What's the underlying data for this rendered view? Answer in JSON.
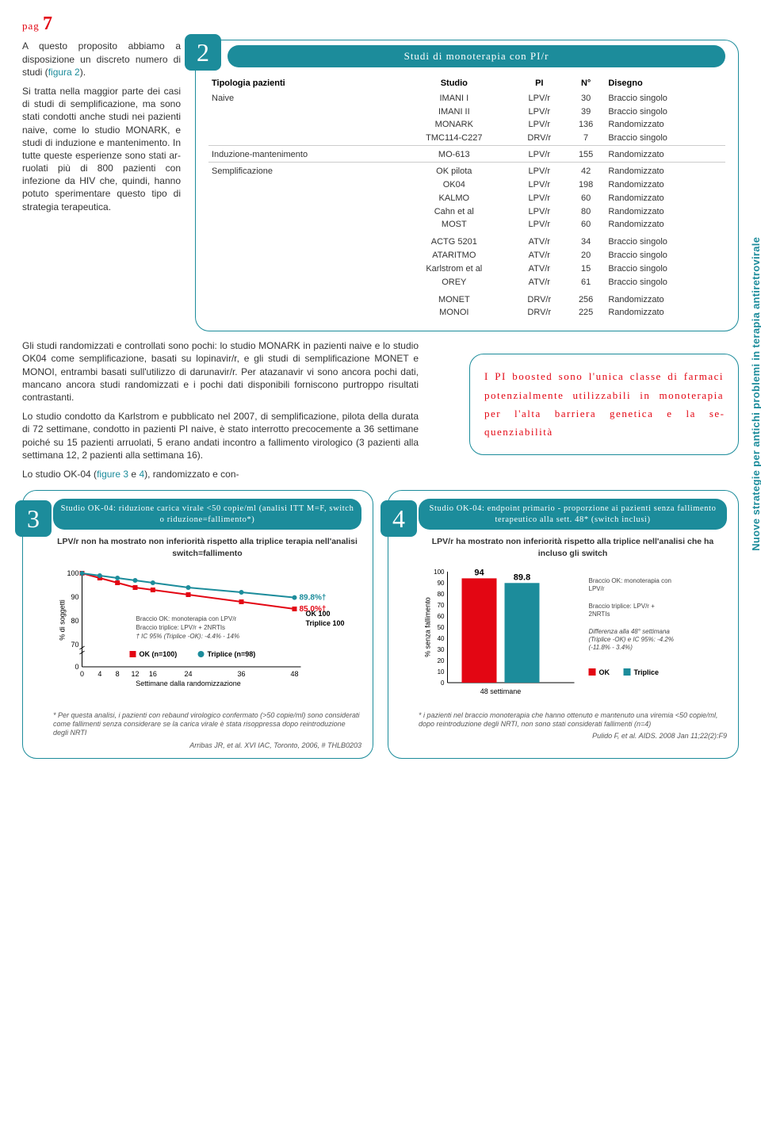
{
  "header": {
    "label": "pag",
    "num": "7"
  },
  "bodyText": {
    "p1a": "A questo proposito ab­biamo a disposizione un discreto numero di studi (",
    "p1ref": "figura 2",
    "p1b": ").",
    "p2": "Si tratta nella maggior parte dei casi di studi di semplificazione, ma sono stati condotti anche studi nei pazienti naive, come lo studio MONARK, e studi di induzione e man­tenimento. In tutte queste esperienze sono stati ar­ruolati più di 800 pazienti con infezione da HIV che, quindi, hanno potuto sperimentare questo tipo di strategia terapeutica.",
    "p3a": "Gli studi randomizzati e controllati sono pochi: lo studio MONARK in pazienti naive e lo studio OK04 come sem­plificazione, basati su lopinavir/r, e gli studi di semplifi­cazione MONET e MONOI, entrambi basati sull'utilizzo di darunavir/r. Per atazanavir vi sono ancora pochi dati, mancano ancora studi randomizzati e i pochi dati di­sponibili forniscono purtroppo risultati contrastanti.",
    "p3b": "Lo studio condotto da Karlstrom e pubblicato nel 2007, di semplificazione, pilota della durata di 72 settimane, condotto in pazienti PI naive, è stato interrotto preco­cemente a 36 settimane poiché su 15 pazienti arruo­lati, 5 erano andati incontro a fallimento virologico (3 pazienti alla settimana 12, 2 pazienti alla settimana 16).",
    "p3c_a": "Lo studio OK-04 (",
    "p3c_ref": "figure 3",
    "p3c_mid": " e ",
    "p3c_ref2": "4",
    "p3c_b": "), randomizzato e con-"
  },
  "table2": {
    "title": "Studi di monoterapia con PI/r",
    "headers": [
      "Tipologia pazienti",
      "Studio",
      "PI",
      "N°",
      "Disegno"
    ],
    "groups": [
      {
        "label": "Naive",
        "rows": [
          [
            "IMANI I",
            "LPV/r",
            "30",
            "Braccio singolo"
          ],
          [
            "IMANI II",
            "LPV/r",
            "39",
            "Braccio singolo"
          ],
          [
            "MONARK",
            "LPV/r",
            "136",
            "Randomizzato"
          ],
          [
            "TMC114-C227",
            "DRV/r",
            "7",
            "Braccio singolo"
          ]
        ]
      },
      {
        "label": "Induzione-mantenimento",
        "rows": [
          [
            "MO-613",
            "LPV/r",
            "155",
            "Randomizzato"
          ]
        ]
      },
      {
        "label": "Semplificazione",
        "rows": [
          [
            "OK pilota",
            "LPV/r",
            "42",
            "Randomizzato"
          ],
          [
            "OK04",
            "LPV/r",
            "198",
            "Randomizzato"
          ],
          [
            "KALMO",
            "LPV/r",
            "60",
            "Randomizzato"
          ],
          [
            "Cahn et al",
            "LPV/r",
            "80",
            "Randomizzato"
          ],
          [
            "MOST",
            "LPV/r",
            "60",
            "Randomizzato"
          ]
        ]
      },
      {
        "label": "",
        "rows": [
          [
            "ACTG 5201",
            "ATV/r",
            "34",
            "Braccio singolo"
          ],
          [
            "ATARITMO",
            "ATV/r",
            "20",
            "Braccio singolo"
          ],
          [
            "Karlstrom et al",
            "ATV/r",
            "15",
            "Braccio singolo"
          ],
          [
            "OREY",
            "ATV/r",
            "61",
            "Braccio singolo"
          ]
        ]
      },
      {
        "label": "",
        "rows": [
          [
            "MONET",
            "DRV/r",
            "256",
            "Randomizzato"
          ],
          [
            "MONOI",
            "DRV/r",
            "225",
            "Randomizzato"
          ]
        ]
      }
    ]
  },
  "callout": "I PI boosted sono l'unica classe di far­maci potenzialmente utilizzabili in monote­rapia per l'alta bar­riera genetica e la se­quenziabilità",
  "chart3": {
    "badge": "3",
    "title": "Studio OK-04: riduzione carica virale <50 copie/ml (analisi ITT M=F, switch o riduzione=fallimento*)",
    "sub": "LPV/r non ha mostrato non inferiorità rispetto alla triplice terapia nell'analisi switch=fallimento",
    "yticks": [
      "100",
      "90",
      "80",
      "70",
      "0"
    ],
    "xticks": [
      "0",
      "4",
      "8",
      "12",
      "16",
      "24",
      "36",
      "48"
    ],
    "xlabel": "Settimane dalla randomizzazione",
    "ylabel": "% di soggetti",
    "series": [
      {
        "name": "OK",
        "color": "#e30613",
        "marker": "square",
        "points": [
          [
            0,
            100
          ],
          [
            4,
            98
          ],
          [
            8,
            96
          ],
          [
            12,
            94
          ],
          [
            16,
            93
          ],
          [
            24,
            91
          ],
          [
            36,
            88
          ],
          [
            48,
            85.0
          ]
        ],
        "endLabel": "85.0%†"
      },
      {
        "name": "Triplice",
        "color": "#1c8c9b",
        "marker": "circle",
        "points": [
          [
            0,
            100
          ],
          [
            4,
            99
          ],
          [
            8,
            98
          ],
          [
            12,
            97
          ],
          [
            16,
            96
          ],
          [
            24,
            94
          ],
          [
            36,
            92
          ],
          [
            48,
            89.8
          ]
        ],
        "endLabel": "89.8%†"
      }
    ],
    "legendLines": [
      "Braccio OK: monoterapia con LPV/r",
      "Braccio triplice: LPV/r + 2NRTIs",
      "† IC 95% (Triplice -OK): -4.4% - 14%"
    ],
    "legendN": {
      "ok": "OK (n=100)",
      "tr": "Triplice (n=98)"
    },
    "rightNote": {
      "ok": "OK 100",
      "tr": "Triplice 100"
    },
    "foot": "* Per questa analisi, i pazienti con rebaund virologico confermato (>50 copie/ml) sono considerati come fallimenti senza considerare se la carica virale è stata risoppressa dopo reintroduzione degli NRTI",
    "ref": "Arribas JR, et al. XVI IAC, Toronto, 2006, # THLB0203"
  },
  "chart4": {
    "badge": "4",
    "title": "Studio OK-04: endpoint primario - proporzione ai pazienti senza fallimento terapeutico alla sett. 48* (switch inclusi)",
    "sub": "LPV/r ha mostrato non inferiorità rispetto alla triplice nell'analisi che ha incluso gli switch",
    "ylabel": "% senza fallimento",
    "yticks": [
      "100",
      "90",
      "80",
      "70",
      "60",
      "50",
      "40",
      "30",
      "20",
      "10",
      "0"
    ],
    "xlabel": "48 settimane",
    "bars": [
      {
        "label": "94",
        "value": 94,
        "color": "#e30613"
      },
      {
        "label": "89.8",
        "value": 89.8,
        "color": "#1c8c9b"
      }
    ],
    "legendLines": [
      "Braccio OK: monoterapia con LPV/r",
      "Braccio triplice: LPV/r + 2NRTIs",
      "Differenza alla 48° settimana (Triplice -OK) e IC 95%: -4.2% (-11.8% - 3.4%)"
    ],
    "legendKeys": {
      "ok": "OK",
      "tr": "Triplice"
    },
    "foot": "* i pazienti nel braccio monoterapia che hanno ottenuto e mantenuto una viremia <50 copie/ml, dopo reintroduzione degli NRTI, non sono stati considerati fallimenti (n=4)",
    "ref": "Pulido F, et al. AIDS. 2008 Jan 11;22(2):F9"
  },
  "sideLabel": "Nuove strategie per antichi problemi in terapia antiretrovirale"
}
